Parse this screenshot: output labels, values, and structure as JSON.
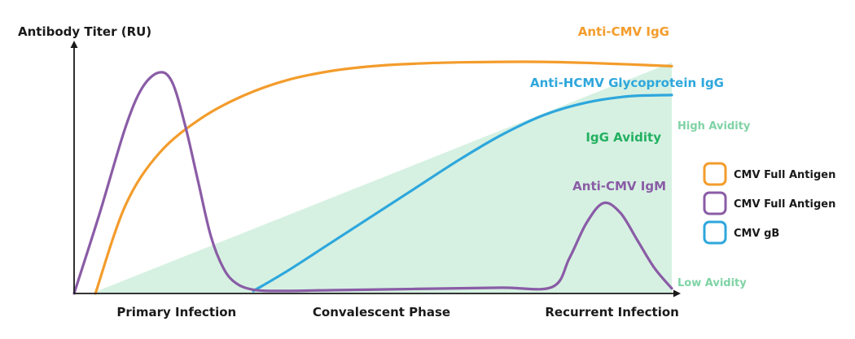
{
  "chart_data": {
    "type": "line",
    "ylabel": "Antibody Titer (RU)",
    "xlabel": "",
    "x_ticks": [
      "Primary Infection",
      "Convalescent Phase",
      "Recurrent Infection"
    ],
    "x_tick_positions": [
      1.2,
      3.6,
      6.3
    ],
    "xlim": [
      0,
      7
    ],
    "ylim": [
      0,
      100
    ],
    "colors": {
      "igg": "#f39c2b",
      "igm": "#8a5ca6",
      "gb": "#2ea7dc",
      "avidity_fill": "#d6f1e2",
      "avidity_text": "#22b060",
      "avidity_levels": "#7fd3a5"
    },
    "series": [
      {
        "name": "Anti-CMV IgG",
        "color_key": "igg",
        "x": [
          0.25,
          0.6,
          1.0,
          1.5,
          2.0,
          2.5,
          3.0,
          3.5,
          4.0,
          4.5,
          5.0,
          5.5,
          6.0,
          6.5,
          7.0
        ],
        "y": [
          0,
          35,
          56,
          70,
          79,
          85,
          88.5,
          90.5,
          91.5,
          92,
          92.2,
          92.2,
          91.8,
          91.2,
          90.5
        ]
      },
      {
        "name": "Anti-HCMV Glycoprotein IgG",
        "color_key": "gb",
        "x": [
          2.1,
          2.5,
          3.0,
          3.5,
          4.0,
          4.5,
          5.0,
          5.5,
          6.0,
          6.5,
          7.0
        ],
        "y": [
          1,
          9,
          20,
          31,
          42,
          53,
          63,
          71,
          76,
          78.5,
          79
        ]
      },
      {
        "name": "Anti-CMV IgM",
        "color_key": "igm",
        "x": [
          0,
          0.3,
          0.6,
          0.8,
          1.0,
          1.15,
          1.3,
          1.45,
          1.6,
          1.75,
          1.9,
          2.1,
          2.4,
          3.0,
          4.0,
          5.0,
          5.6,
          5.8,
          6.0,
          6.2,
          6.4,
          6.6,
          6.8,
          7.0
        ],
        "y": [
          0,
          32,
          66,
          82,
          88,
          84,
          67,
          45,
          23,
          10,
          4,
          1.5,
          1,
          1.3,
          1.8,
          2.3,
          2.6,
          14,
          28,
          36,
          32,
          21,
          10,
          2
        ]
      }
    ],
    "avidity": {
      "name": "IgG Avidity",
      "x": [
        0.2,
        7.0
      ],
      "low": [
        0,
        0
      ],
      "high": [
        0,
        92
      ],
      "high_label": "High Avidity",
      "low_label": "Low Avidity"
    },
    "legend": {
      "placement": "right",
      "items": [
        {
          "label": "CMV Full Antigen",
          "color_key": "igg"
        },
        {
          "label": "CMV Full Antigen",
          "color_key": "igm"
        },
        {
          "label": "CMV gB",
          "color_key": "gb"
        }
      ]
    }
  }
}
